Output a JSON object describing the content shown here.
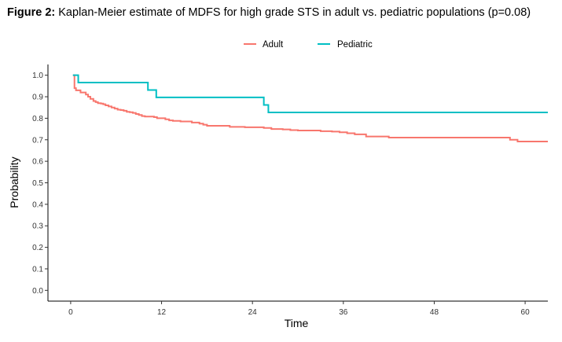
{
  "figure": {
    "label": "Figure 2:",
    "caption": "Kaplan-Meier estimate of MDFS for high grade STS in adult vs. pediatric populations (p=0.08)"
  },
  "chart_data": {
    "type": "line",
    "step": true,
    "xlabel": "Time",
    "ylabel": "Probability",
    "xlim": [
      -3,
      63
    ],
    "ylim": [
      -0.05,
      1.05
    ],
    "xticks": [
      0,
      12,
      24,
      36,
      48,
      60
    ],
    "yticks": [
      0.0,
      0.1,
      0.2,
      0.3,
      0.4,
      0.5,
      0.6,
      0.7,
      0.8,
      0.9,
      1.0
    ],
    "ytick_labels": [
      "0.0",
      "0.1",
      "0.2",
      "0.3",
      "0.4",
      "0.5",
      "0.6",
      "0.7",
      "0.8",
      "0.9",
      "1.0"
    ],
    "legend_position": "top",
    "grid": false,
    "series": [
      {
        "name": "Adult",
        "color": "#f8766d",
        "x": [
          0.3,
          0.5,
          0.7,
          1.0,
          1.3,
          1.6,
          2.0,
          2.3,
          2.6,
          3.0,
          3.3,
          3.6,
          4.0,
          4.3,
          4.6,
          5.0,
          5.4,
          5.8,
          6.2,
          6.6,
          7.0,
          7.4,
          7.8,
          8.2,
          8.6,
          9.0,
          9.4,
          9.8,
          10.2,
          10.6,
          11.0,
          11.4,
          12.5,
          13.0,
          13.5,
          14.0,
          14.5,
          15.0,
          16.0,
          17.0,
          17.5,
          18.0,
          18.5,
          19.5,
          21.0,
          22.0,
          23.0,
          25.5,
          26.5,
          28.0,
          29.0,
          30.0,
          33.0,
          34.5,
          35.5,
          36.5,
          37.5,
          39.0,
          42.0,
          58.0,
          59.0,
          63.0
        ],
        "y": [
          1.0,
          0.94,
          0.93,
          0.93,
          0.92,
          0.92,
          0.91,
          0.9,
          0.89,
          0.88,
          0.875,
          0.87,
          0.868,
          0.865,
          0.86,
          0.855,
          0.85,
          0.845,
          0.84,
          0.838,
          0.835,
          0.83,
          0.828,
          0.825,
          0.82,
          0.815,
          0.81,
          0.808,
          0.808,
          0.808,
          0.805,
          0.8,
          0.795,
          0.79,
          0.788,
          0.788,
          0.785,
          0.785,
          0.78,
          0.775,
          0.77,
          0.765,
          0.765,
          0.765,
          0.76,
          0.76,
          0.758,
          0.755,
          0.75,
          0.748,
          0.745,
          0.743,
          0.74,
          0.738,
          0.735,
          0.73,
          0.725,
          0.715,
          0.71,
          0.7,
          0.692,
          0.692
        ]
      },
      {
        "name": "Pediatric",
        "color": "#00bfc4",
        "x": [
          0.3,
          1.0,
          10.2,
          11.3,
          25.5,
          26.1,
          63.0
        ],
        "y": [
          1.0,
          0.966,
          0.931,
          0.897,
          0.862,
          0.827,
          0.827
        ]
      }
    ]
  }
}
